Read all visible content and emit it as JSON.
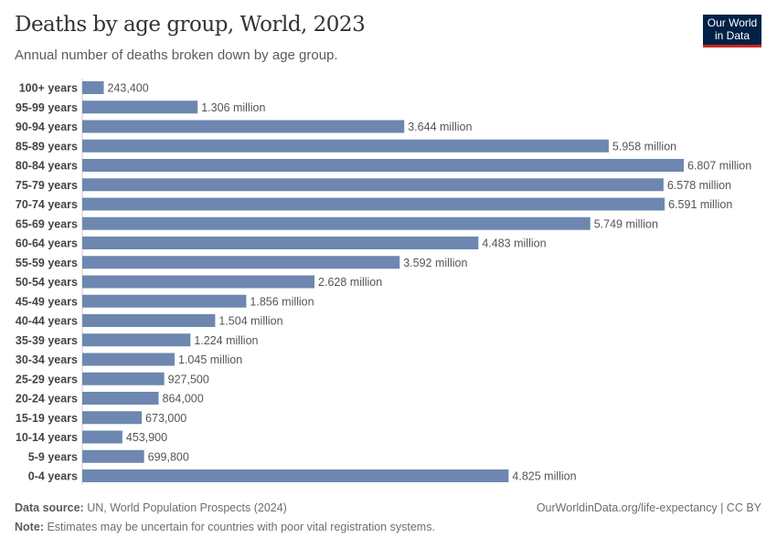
{
  "header": {
    "title": "Deaths by age group, World, 2023",
    "subtitle": "Annual number of deaths broken down by age group.",
    "logo": "Our World in Data"
  },
  "chart_data": {
    "type": "bar",
    "orientation": "horizontal",
    "title": "Deaths by age group, World, 2023",
    "subtitle": "Annual number of deaths broken down by age group.",
    "categories": [
      "100+ years",
      "95-99 years",
      "90-94 years",
      "85-89 years",
      "80-84 years",
      "75-79 years",
      "70-74 years",
      "65-69 years",
      "60-64 years",
      "55-59 years",
      "50-54 years",
      "45-49 years",
      "40-44 years",
      "35-39 years",
      "30-34 years",
      "25-29 years",
      "20-24 years",
      "15-19 years",
      "10-14 years",
      "5-9 years",
      "0-4 years"
    ],
    "values": [
      243400,
      1306000,
      3644000,
      5958000,
      6807000,
      6578000,
      6591000,
      5749000,
      4483000,
      3592000,
      2628000,
      1856000,
      1504000,
      1224000,
      1045000,
      927500,
      864000,
      673000,
      453900,
      699800,
      4825000
    ],
    "data_labels": [
      "243,400",
      "1.306 million",
      "3.644 million",
      "5.958 million",
      "6.807 million",
      "6.578 million",
      "6.591 million",
      "5.749 million",
      "4.483 million",
      "3.592 million",
      "2.628 million",
      "1.856 million",
      "1.504 million",
      "1.224 million",
      "1.045 million",
      "927,500",
      "864,000",
      "673,000",
      "453,900",
      "699,800",
      "4.825 million"
    ],
    "bar_color": "#6d87b0",
    "grid": false
  },
  "footer": {
    "source_label": "Data source:",
    "source": "UN, World Population Prospects (2024)",
    "url": "OurWorldinData.org/life-expectancy | CC BY",
    "note_label": "Note:",
    "note": "Estimates may be uncertain for countries with poor vital registration systems."
  }
}
